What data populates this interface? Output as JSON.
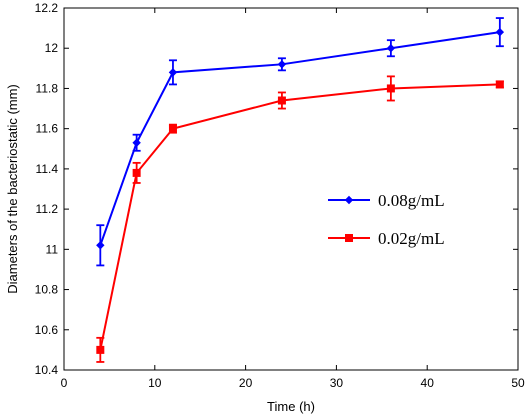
{
  "chart_data": {
    "type": "line",
    "title": "",
    "xlabel": "Time (h)",
    "ylabel": "Diameters of the bacteriostatic (mm)",
    "xlim": [
      0,
      50
    ],
    "ylim": [
      10.4,
      12.2
    ],
    "xticks": [
      0,
      10,
      20,
      30,
      40,
      50
    ],
    "yticks": [
      10.4,
      10.6,
      10.8,
      11,
      11.2,
      11.4,
      11.6,
      11.8,
      12,
      12.2
    ],
    "xtick_labels": [
      "0",
      "10",
      "20",
      "30",
      "40",
      "50"
    ],
    "ytick_labels": [
      "10.4",
      "10.6",
      "10.8",
      "11",
      "11.2",
      "11.4",
      "11.6",
      "11.8",
      "12",
      "12.2"
    ],
    "grid": false,
    "legend_position": "center-right",
    "series": [
      {
        "name": "0.08g/mL",
        "color": "#0000ff",
        "marker": "diamond",
        "x": [
          4,
          8,
          12,
          24,
          36,
          48
        ],
        "y": [
          11.02,
          11.53,
          11.88,
          11.92,
          12.0,
          12.08
        ],
        "error": [
          0.1,
          0.04,
          0.06,
          0.03,
          0.04,
          0.07
        ]
      },
      {
        "name": "0.02g/mL",
        "color": "#ff0000",
        "marker": "square",
        "x": [
          4,
          8,
          12,
          24,
          36,
          48
        ],
        "y": [
          10.5,
          11.38,
          11.6,
          11.74,
          11.8,
          11.82
        ],
        "error": [
          0.06,
          0.05,
          0.02,
          0.04,
          0.06,
          0.015
        ]
      }
    ]
  }
}
